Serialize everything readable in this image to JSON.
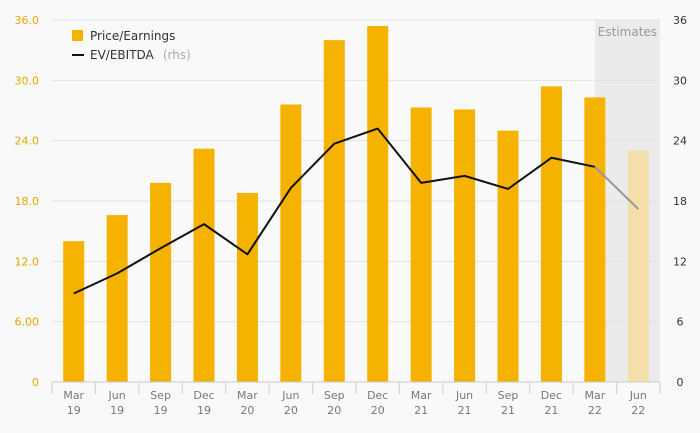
{
  "colors": {
    "bar": "#f5b200",
    "bar_estimate": "#f3dfaa",
    "line": "#111111",
    "line_estimate": "#999999",
    "estimates_band": "#ebebeb",
    "grid": "#e3e3e3",
    "left_axis_text": "#e8a600"
  },
  "chart_data": {
    "type": "bar",
    "categories": [
      [
        "Mar",
        "19"
      ],
      [
        "Jun",
        "19"
      ],
      [
        "Sep",
        "19"
      ],
      [
        "Dec",
        "19"
      ],
      [
        "Mar",
        "20"
      ],
      [
        "Jun",
        "20"
      ],
      [
        "Sep",
        "20"
      ],
      [
        "Dec",
        "20"
      ],
      [
        "Mar",
        "21"
      ],
      [
        "Jun",
        "21"
      ],
      [
        "Sep",
        "21"
      ],
      [
        "Dec",
        "21"
      ],
      [
        "Mar",
        "22"
      ],
      [
        "Jun",
        "22"
      ]
    ],
    "estimate_start_index": 13,
    "estimates_label": "Estimates",
    "y_left": {
      "ylim": [
        0,
        36
      ],
      "ticks": [
        0,
        6,
        12,
        18,
        24,
        30,
        36
      ],
      "tick_labels": [
        "0",
        "6.00",
        "12.0",
        "18.0",
        "24.0",
        "30.0",
        "36.0"
      ]
    },
    "y_right": {
      "ylim": [
        0,
        36
      ],
      "ticks": [
        0,
        6,
        12,
        18,
        24,
        30,
        36
      ],
      "tick_labels": [
        "0",
        "6",
        "12",
        "18",
        "24",
        "30",
        "36"
      ]
    },
    "grid": true,
    "legend_position": "top-left",
    "series": [
      {
        "name": "Price/Earnings",
        "chart_type": "bar",
        "axis": "left",
        "values": [
          14.0,
          16.6,
          19.8,
          23.2,
          18.8,
          27.6,
          34.0,
          35.4,
          27.3,
          27.1,
          25.0,
          29.4,
          28.3,
          23.0
        ]
      },
      {
        "name": "EV/EBITDA",
        "name_suffix": "(rhs)",
        "chart_type": "line",
        "axis": "right",
        "values": [
          8.8,
          10.8,
          13.3,
          15.7,
          12.7,
          19.3,
          23.7,
          25.2,
          19.8,
          20.5,
          19.2,
          22.3,
          21.4,
          17.2
        ]
      }
    ]
  }
}
